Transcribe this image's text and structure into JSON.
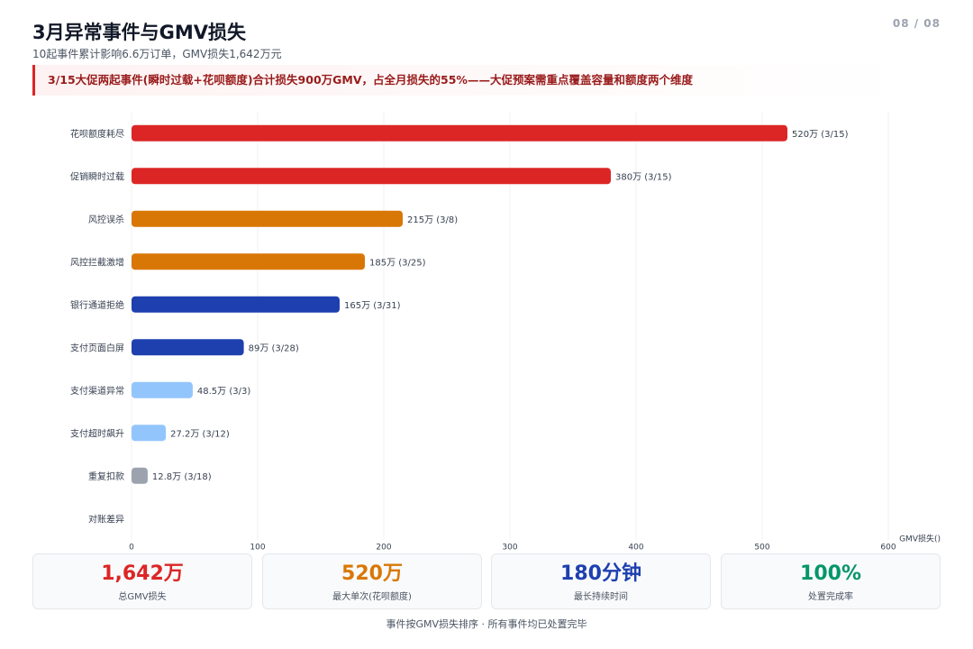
{
  "header": {
    "title": "3月异常事件与GMV损失",
    "subtitle": "10起事件累计影响6.6万订单，GMV损失1,642万元",
    "page": "08 / 08"
  },
  "callout": "3/15大促两起事件(瞬时过载+花呗额度)合计损失900万GMV，占全月损失的55%——大促预案需重点覆盖容量和额度两个维度",
  "chart_data": {
    "type": "bar",
    "orientation": "horizontal",
    "categories": [
      "花呗额度耗尽",
      "促销瞬时过载",
      "风控误杀",
      "风控拦截激增",
      "银行通道拒绝",
      "支付页面白屏",
      "支付渠道异常",
      "支付超时飙升",
      "重复扣款",
      "对账差异"
    ],
    "values": [
      520,
      380,
      215,
      185,
      165,
      89,
      48.5,
      27.2,
      12.8,
      null
    ],
    "value_labels": [
      "520万 (3/15)",
      "380万 (3/15)",
      "215万 (3/8)",
      "185万 (3/25)",
      "165万 (3/31)",
      "89万 (3/28)",
      "48.5万 (3/3)",
      "27.2万 (3/12)",
      "12.8万 (3/18)",
      null
    ],
    "colors": [
      "#dc2626",
      "#dc2626",
      "#d97706",
      "#d97706",
      "#1e40af",
      "#1e40af",
      "#93c5fd",
      "#93c5fd",
      "#9ca3af",
      "#9ca3af"
    ],
    "xlim": [
      0,
      600
    ],
    "xticks": [
      0,
      100,
      200,
      300,
      400,
      500,
      600
    ],
    "x_label": "GMV损失()",
    "grid": true
  },
  "kpis": [
    {
      "value": "1,642万",
      "label": "总GMV损失",
      "color": "#dc2626"
    },
    {
      "value": "520万",
      "label": "最大单次(花呗额度)",
      "color": "#d97706"
    },
    {
      "value": "180分钟",
      "label": "最长持续时间",
      "color": "#1e40af"
    },
    {
      "value": "100%",
      "label": "处置完成率",
      "color": "#059669"
    }
  ],
  "footer": "事件按GMV损失排序 · 所有事件均已处置完毕"
}
